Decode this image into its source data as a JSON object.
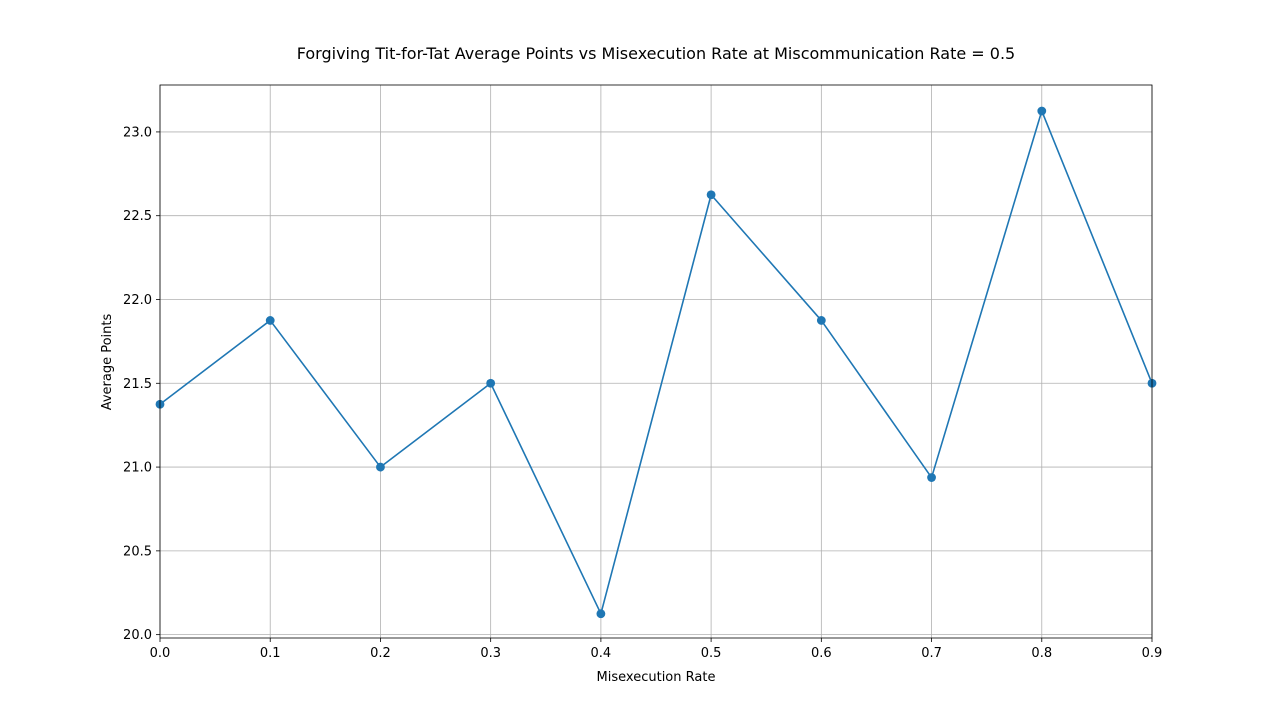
{
  "chart_data": {
    "type": "line",
    "title": "Forgiving Tit-for-Tat Average Points vs Misexecution Rate at Miscommunication Rate = 0.5",
    "xlabel": "Misexecution Rate",
    "ylabel": "Average Points",
    "x": [
      0.0,
      0.1,
      0.2,
      0.3,
      0.4,
      0.5,
      0.6,
      0.7,
      0.8,
      0.9
    ],
    "series": [
      {
        "values": [
          21.375,
          21.875,
          21.0,
          21.5,
          20.125,
          22.625,
          21.875,
          20.9375,
          23.125,
          21.5
        ],
        "color": "#1f77b4",
        "marker": "circle"
      }
    ],
    "xlim": [
      0.0,
      0.9
    ],
    "ylim": [
      19.98,
      23.28
    ],
    "xticks": [
      "0.0",
      "0.1",
      "0.2",
      "0.3",
      "0.4",
      "0.5",
      "0.6",
      "0.7",
      "0.8",
      "0.9"
    ],
    "xtick_values": [
      0.0,
      0.1,
      0.2,
      0.3,
      0.4,
      0.5,
      0.6,
      0.7,
      0.8,
      0.9
    ],
    "yticks": [
      "20.0",
      "20.5",
      "21.0",
      "21.5",
      "22.0",
      "22.5",
      "23.0"
    ],
    "ytick_values": [
      20.0,
      20.5,
      21.0,
      21.5,
      22.0,
      22.5,
      23.0
    ],
    "grid": true,
    "legend": false
  }
}
